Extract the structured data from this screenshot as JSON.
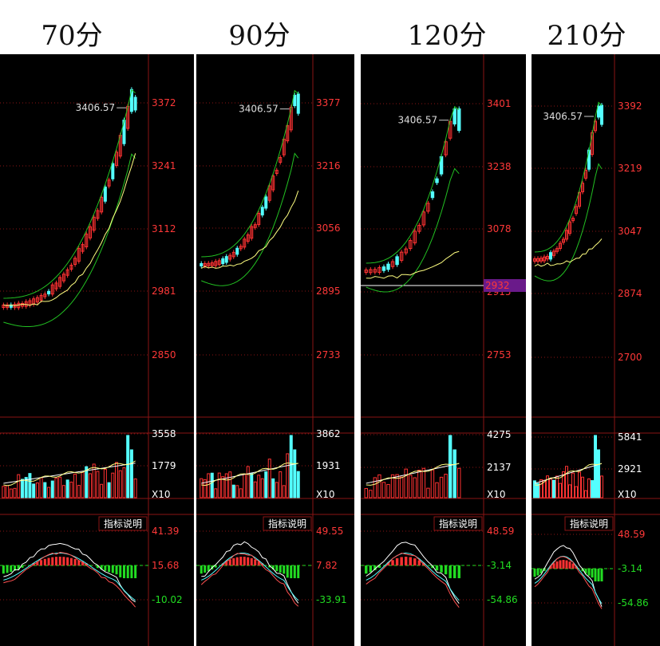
{
  "chart_data": [
    {
      "type": "candlestick",
      "title": "70分",
      "peak_label": "3406.57",
      "price_axis": [
        "3372",
        "3241",
        "3112",
        "2981",
        "2850"
      ],
      "volume_axis": [
        "3558",
        "1779"
      ],
      "volume_unit": "X10",
      "indicator_button": "指标说明",
      "indicator_axis": [
        "41.39",
        "15.68",
        "-10.02"
      ]
    },
    {
      "type": "candlestick",
      "title": "90分",
      "peak_label": "3406.57",
      "price_axis": [
        "3377",
        "3216",
        "3056",
        "2895",
        "2733"
      ],
      "volume_axis": [
        "3862",
        "1931"
      ],
      "volume_unit": "X10",
      "indicator_button": "指标说明",
      "indicator_axis": [
        "49.55",
        "7.82",
        "-33.91"
      ]
    },
    {
      "type": "candlestick",
      "title": "120分",
      "peak_label": "3406.57",
      "price_axis": [
        "3401",
        "3238",
        "3078",
        "2915",
        "2753"
      ],
      "price_marker": "2932",
      "volume_axis": [
        "4275",
        "2137"
      ],
      "volume_unit": "X10",
      "indicator_button": "指标说明",
      "indicator_axis": [
        "48.59",
        "-3.14",
        "-54.86"
      ]
    },
    {
      "type": "candlestick",
      "title": "210分",
      "peak_label": "3406.57",
      "price_axis": [
        "3392",
        "3219",
        "3047",
        "2874",
        "2700"
      ],
      "volume_axis": [
        "5841",
        "2921"
      ],
      "volume_unit": "X10",
      "indicator_button": "指标说明",
      "indicator_axis": [
        "48.59",
        "-3.14",
        "-54.86"
      ]
    }
  ],
  "colors": {
    "up": "#ff3232",
    "down": "#54ffff",
    "axis_text": "#ff3838",
    "neg_text": "#22dd22",
    "grid": "#8a1414",
    "ma_white": "#ffffff",
    "ma_yellow": "#ffff80",
    "band_green": "#22c022",
    "marker_bg": "#6a1a8a"
  }
}
